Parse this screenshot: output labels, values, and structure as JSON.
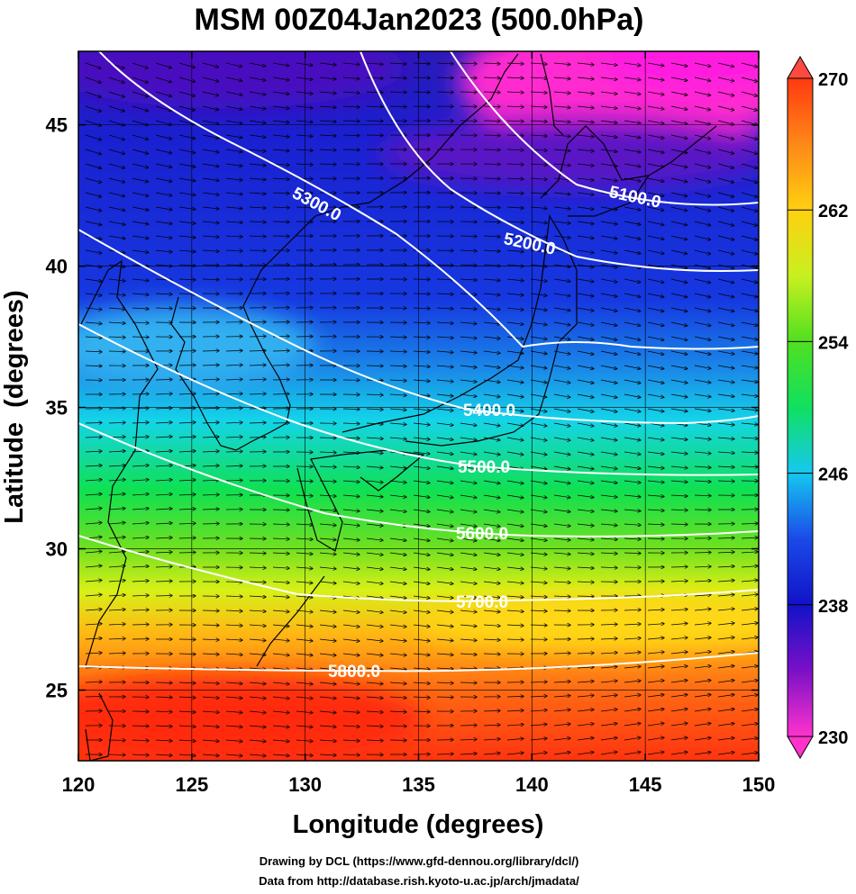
{
  "chart_data": {
    "type": "heatmap",
    "title": "MSM 00Z04Jan2023 (500.0hPa)",
    "xlabel": "Longitude (degrees)",
    "ylabel": "Latitude  (degrees)",
    "xlim": [
      120,
      150
    ],
    "ylim": [
      22.5,
      47.6
    ],
    "x_ticks": [
      120,
      125,
      130,
      135,
      140,
      145,
      150
    ],
    "y_ticks": [
      25,
      30,
      35,
      40,
      45
    ],
    "colorbar": {
      "min": 230,
      "max": 270,
      "ticks": [
        230,
        238,
        246,
        254,
        262,
        270
      ],
      "extend": "both",
      "colors": [
        "#ff33cc",
        "#7a10c8",
        "#1212c8",
        "#1a4ae8",
        "#16c8f0",
        "#10e060",
        "#50e020",
        "#c8f020",
        "#ffd010",
        "#ff8818",
        "#ff3a10"
      ]
    },
    "grid": true,
    "contours": [
      {
        "label": "5100.0",
        "value": 5100
      },
      {
        "label": "5200.0",
        "value": 5200
      },
      {
        "label": "5300.0",
        "value": 5300
      },
      {
        "label": "5400.0",
        "value": 5400
      },
      {
        "label": "5500.0",
        "value": 5500
      },
      {
        "label": "5600.0",
        "value": 5600
      },
      {
        "label": "5700.0",
        "value": 5700
      },
      {
        "label": "5800.0",
        "value": 5800
      }
    ]
  },
  "credits": {
    "line1": "Drawing by DCL (https://www.gfd-dennou.org/library/dcl/)",
    "line2": "Data from http://database.rish.kyoto-u.ac.jp/arch/jmadata/"
  }
}
